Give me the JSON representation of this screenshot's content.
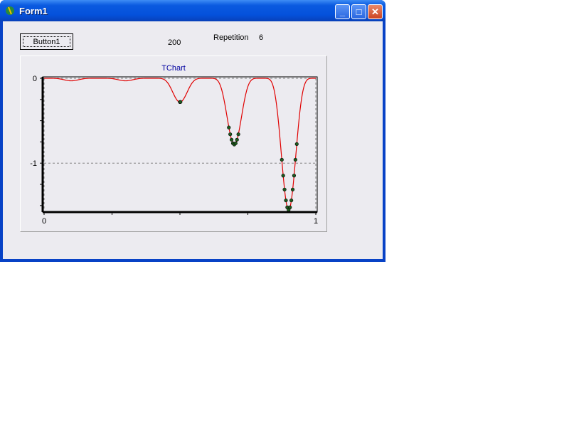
{
  "window": {
    "title": "Form1",
    "icon": "delphi-app-icon",
    "buttons": [
      "minimize",
      "maximize",
      "close"
    ]
  },
  "form": {
    "button1_label": "Button1",
    "value_label": "200",
    "repetition_label": "Repetition",
    "repetition_value": "6"
  },
  "chart_data": {
    "type": "line",
    "title": "TChart",
    "xlim": [
      0,
      1
    ],
    "ylim": [
      -1.56,
      0
    ],
    "x_tick_labels": [
      "0",
      "1"
    ],
    "x_ticks": [
      0,
      0.25,
      0.5,
      0.75,
      1
    ],
    "y_tick_labels": [
      "0",
      "-1"
    ],
    "y_ticks": [
      0,
      -0.25,
      -0.5,
      -0.75,
      -1,
      -1.25,
      -1.5
    ],
    "grid": {
      "y": [
        0,
        -1
      ],
      "x": [
        0,
        1
      ],
      "style": "dashed"
    },
    "line": {
      "color": "#e00000",
      "dip_centers": [
        0.1,
        0.3,
        0.5,
        0.7,
        0.9
      ],
      "dip_depths": [
        0.03,
        0.03,
        0.28,
        0.78,
        1.55
      ]
    },
    "points": {
      "color": "#1e5a1e",
      "x": [
        0.5,
        0.502,
        0.68,
        0.685,
        0.69,
        0.695,
        0.7,
        0.705,
        0.71,
        0.715,
        0.875,
        0.88,
        0.885,
        0.89,
        0.895,
        0.9,
        0.905,
        0.91,
        0.915,
        0.92,
        0.925,
        0.93
      ],
      "y": [
        -0.28,
        -0.279,
        -0.58,
        -0.66,
        -0.724,
        -0.766,
        -0.78,
        -0.766,
        -0.724,
        -0.66,
        -0.96,
        -1.147,
        -1.311,
        -1.439,
        -1.521,
        -1.55,
        -1.521,
        -1.439,
        -1.311,
        -1.147,
        -0.96,
        -0.775
      ]
    },
    "legend": "none"
  }
}
